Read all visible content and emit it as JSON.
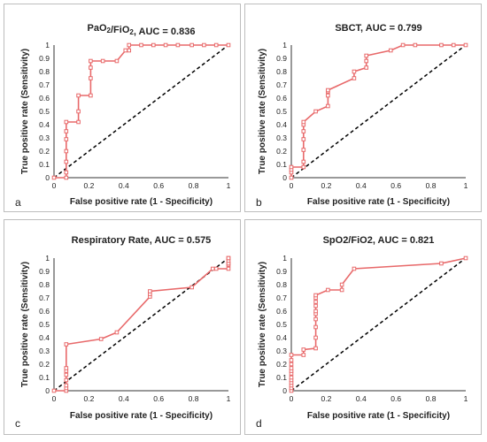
{
  "chart_data": [
    {
      "type": "line",
      "title": "PaO2/FiO2, AUC = 0.836",
      "title_main": "PaO",
      "title_sub1": "2",
      "title_mid": "/FiO",
      "title_sub2": "2",
      "title_tail": ", AUC = 0.836",
      "panel_letter": "a",
      "xlabel": "False positive rate (1 - Specificity)",
      "ylabel": "True positive rate (Sensitivity)",
      "xlim": [
        0,
        1
      ],
      "ylim": [
        0,
        1
      ],
      "xticks": [
        "0",
        "0.2",
        "0.4",
        "0.6",
        "0.8",
        "1"
      ],
      "yticks": [
        "0",
        "0.1",
        "0.2",
        "0.3",
        "0.4",
        "0.5",
        "0.6",
        "0.7",
        "0.8",
        "0.9",
        "1"
      ],
      "series": [
        {
          "x": [
            0,
            0.07,
            0.07,
            0.07,
            0.07,
            0.07,
            0.07,
            0.07,
            0.14,
            0.14,
            0.14,
            0.21,
            0.21,
            0.21,
            0.21,
            0.28,
            0.36,
            0.41,
            0.43,
            0.43,
            0.5,
            0.57,
            0.64,
            0.71,
            0.79,
            0.86,
            0.93,
            1
          ],
          "y": [
            0,
            0,
            0.04,
            0.12,
            0.2,
            0.29,
            0.35,
            0.42,
            0.42,
            0.5,
            0.62,
            0.62,
            0.75,
            0.83,
            0.88,
            0.88,
            0.88,
            0.96,
            0.96,
            1,
            1,
            1,
            1,
            1,
            1,
            1,
            1,
            1
          ]
        }
      ],
      "diagonal": true
    },
    {
      "type": "line",
      "title": "SBCT, AUC = 0.799",
      "panel_letter": "b",
      "xlabel": "False positive rate (1 - Specificity)",
      "ylabel": "True positive rate (Sensitivity)",
      "xlim": [
        0,
        1
      ],
      "ylim": [
        0,
        1
      ],
      "xticks": [
        "0",
        "0.2",
        "0.4",
        "0.6",
        "0.8",
        "1"
      ],
      "yticks": [
        "0",
        "0.1",
        "0.2",
        "0.3",
        "0.4",
        "0.5",
        "0.6",
        "0.7",
        "0.8",
        "0.9",
        "1"
      ],
      "series": [
        {
          "x": [
            0,
            0,
            0,
            0,
            0.07,
            0.07,
            0.07,
            0.07,
            0.07,
            0.07,
            0.07,
            0.14,
            0.21,
            0.21,
            0.21,
            0.21,
            0.36,
            0.36,
            0.43,
            0.43,
            0.43,
            0.57,
            0.64,
            0.71,
            0.86,
            0.93,
            1
          ],
          "y": [
            0,
            0.04,
            0.06,
            0.08,
            0.08,
            0.12,
            0.21,
            0.29,
            0.35,
            0.4,
            0.42,
            0.5,
            0.54,
            0.62,
            0.65,
            0.66,
            0.75,
            0.8,
            0.83,
            0.88,
            0.92,
            0.96,
            1,
            1,
            1,
            1,
            1
          ]
        }
      ],
      "diagonal": true
    },
    {
      "type": "line",
      "title": "Respiratory Rate, AUC = 0.575",
      "panel_letter": "c",
      "xlabel": "False positive rate (1 - Specificity)",
      "ylabel": "True positive rate (Sensitivity)",
      "xlim": [
        0,
        1
      ],
      "ylim": [
        0,
        1
      ],
      "xticks": [
        "0",
        "0.2",
        "0.4",
        "0.6",
        "0.8",
        "1"
      ],
      "yticks": [
        "0",
        "0.1",
        "0.2",
        "0.3",
        "0.4",
        "0.5",
        "0.6",
        "0.7",
        "0.8",
        "0.9",
        "1"
      ],
      "series": [
        {
          "x": [
            0,
            0.07,
            0.07,
            0.07,
            0.07,
            0.07,
            0.07,
            0.07,
            0.07,
            0.27,
            0.36,
            0.55,
            0.55,
            0.55,
            0.79,
            0.91,
            0.93,
            1,
            1,
            1,
            1,
            1,
            1
          ],
          "y": [
            0,
            0,
            0.02,
            0.04,
            0.08,
            0.12,
            0.15,
            0.17,
            0.35,
            0.39,
            0.44,
            0.71,
            0.73,
            0.75,
            0.78,
            0.92,
            0.92,
            0.92,
            0.95,
            0.96,
            0.98,
            1,
            1
          ]
        }
      ],
      "diagonal": true
    },
    {
      "type": "line",
      "title": "SpO2/FiO2, AUC = 0.821",
      "panel_letter": "d",
      "xlabel": "False positive rate (1 - Specificity)",
      "ylabel": "True positive rate (Sensitivity)",
      "xlim": [
        0,
        1
      ],
      "ylim": [
        0,
        1
      ],
      "xticks": [
        "0",
        "0.2",
        "0.4",
        "0.6",
        "0.8",
        "1"
      ],
      "yticks": [
        "0",
        "0.1",
        "0.2",
        "0.3",
        "0.4",
        "0.5",
        "0.6",
        "0.7",
        "0.8",
        "0.9",
        "1"
      ],
      "series": [
        {
          "x": [
            0,
            0,
            0,
            0,
            0,
            0,
            0,
            0,
            0,
            0,
            0,
            0,
            0.07,
            0.07,
            0.14,
            0.14,
            0.14,
            0.14,
            0.14,
            0.14,
            0.14,
            0.14,
            0.14,
            0.14,
            0.21,
            0.29,
            0.29,
            0.36,
            0.86,
            1
          ],
          "y": [
            0,
            0.02,
            0.04,
            0.06,
            0.08,
            0.1,
            0.13,
            0.15,
            0.17,
            0.2,
            0.23,
            0.27,
            0.27,
            0.31,
            0.32,
            0.4,
            0.48,
            0.54,
            0.58,
            0.6,
            0.64,
            0.67,
            0.7,
            0.72,
            0.76,
            0.76,
            0.8,
            0.92,
            0.96,
            1
          ]
        }
      ],
      "diagonal": true
    }
  ],
  "style": {
    "roc_color": "#e8696a",
    "diag_color": "#000000",
    "axis_color": "#333333"
  }
}
